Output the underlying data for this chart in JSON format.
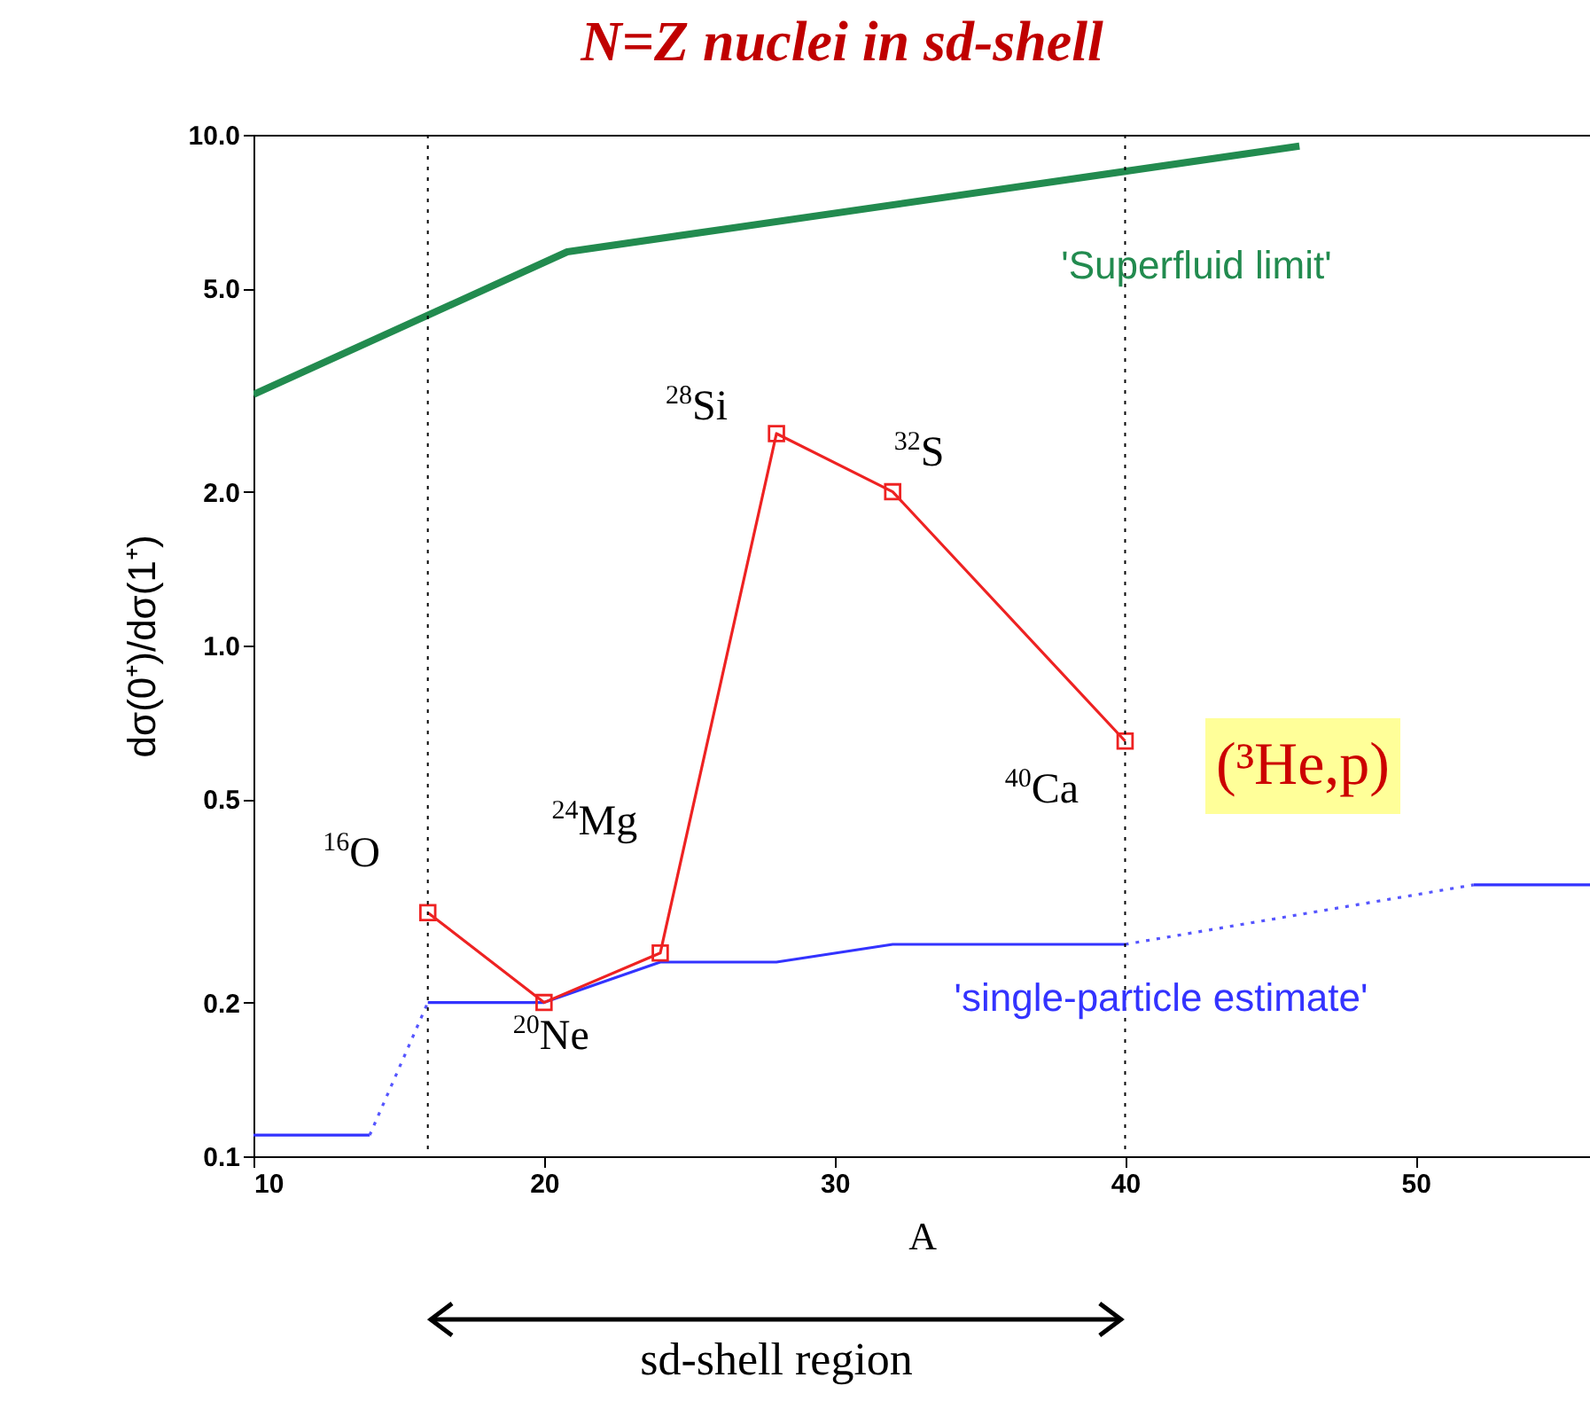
{
  "chart_data": {
    "type": "line",
    "title": "N=Z nuclei in sd-shell",
    "xlabel": "A",
    "ylabel": "dσ(0⁺)/dσ(1⁺)",
    "log": "y",
    "grid": false,
    "xlim": [
      10,
      56
    ],
    "xticks": [
      10,
      20,
      30,
      40,
      50
    ],
    "ylim": [
      0.1,
      10
    ],
    "yticks": [
      {
        "value": 0.1,
        "label": "0.1"
      },
      {
        "value": 0.2,
        "label": "0.2"
      },
      {
        "value": 0.5,
        "label": "0.5"
      },
      {
        "value": 1,
        "label": "1.0"
      },
      {
        "value": 2,
        "label": "2.0"
      },
      {
        "value": 5,
        "label": "5.0"
      },
      {
        "value": 10,
        "label": "10.0"
      }
    ],
    "series": [
      {
        "name": "'Superfluid limit'",
        "color": "#228b4f",
        "x": [
          10,
          20.8,
          46
        ],
        "values": [
          3.1,
          5.9,
          9.5
        ],
        "marker": "none",
        "line_style": "solid"
      },
      {
        "name": "'single-particle estimate'",
        "color": "#3333ff",
        "x": [
          10,
          14,
          15,
          16,
          20,
          24,
          28,
          32,
          40,
          46,
          52,
          56
        ],
        "values": [
          0.11,
          0.11,
          null,
          0.2,
          0.2,
          0.24,
          0.24,
          0.26,
          0.26,
          null,
          0.34,
          0.34
        ],
        "marker": "none",
        "line_style": "solid"
      },
      {
        "color": "#5555ff",
        "x": [
          14,
          16
        ],
        "values": [
          0.11,
          0.2
        ],
        "marker": "none",
        "line_style": "dotted"
      },
      {
        "color": "#5555ff",
        "x": [
          40,
          52
        ],
        "values": [
          0.26,
          0.34
        ],
        "marker": "none",
        "line_style": "dotted"
      },
      {
        "name": "(³He,p)",
        "color": "#ee2222",
        "x": [
          16,
          20,
          24,
          28,
          32,
          40
        ],
        "values": [
          0.3,
          0.2,
          0.25,
          2.6,
          2.0,
          0.65
        ],
        "marker": "square",
        "line_style": "solid"
      }
    ],
    "ref_lines": [
      {
        "axis": "x",
        "value": 16,
        "color": "#000000",
        "line_style": "dotted"
      },
      {
        "axis": "x",
        "value": 40,
        "color": "#000000",
        "line_style": "dotted"
      }
    ],
    "annotations": [
      {
        "text": "$^{16}$O",
        "x": 16,
        "y": 0.3
      },
      {
        "text": "$^{20}$Ne",
        "x": 20,
        "y": 0.2
      },
      {
        "text": "$^{24}$Mg",
        "x": 24,
        "y": 0.25
      },
      {
        "text": "$^{28}$Si",
        "x": 28,
        "y": 2.6
      },
      {
        "text": "$^{32}$S",
        "x": 32,
        "y": 2.0
      },
      {
        "text": "$^{40}$Ca",
        "x": 40,
        "y": 0.65
      },
      "sd-shell region"
    ]
  }
}
